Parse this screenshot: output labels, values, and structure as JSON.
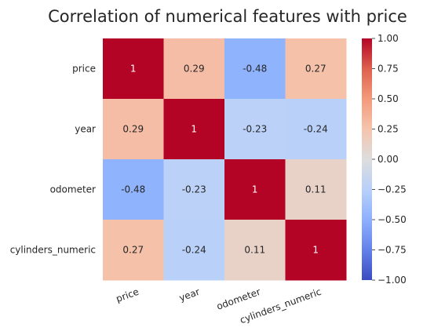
{
  "chart_data": {
    "type": "heatmap",
    "title": "Correlation of numerical features with price",
    "row_labels": [
      "price",
      "year",
      "odometer",
      "cylinders_numeric"
    ],
    "col_labels": [
      "price",
      "year",
      "odometer",
      "cylinders_numeric"
    ],
    "values": [
      [
        1,
        0.29,
        -0.48,
        0.27
      ],
      [
        0.29,
        1,
        -0.23,
        -0.24
      ],
      [
        -0.48,
        -0.23,
        1,
        0.11
      ],
      [
        0.27,
        -0.24,
        0.11,
        1
      ]
    ],
    "cell_text": [
      [
        "1",
        "0.29",
        "-0.48",
        "0.27"
      ],
      [
        "0.29",
        "1",
        "-0.23",
        "-0.24"
      ],
      [
        "-0.48",
        "-0.23",
        "1",
        "0.11"
      ],
      [
        "0.27",
        "-0.24",
        "0.11",
        "1"
      ]
    ],
    "colormap": "coolwarm",
    "vmin": -1,
    "vmax": 1,
    "colorbar_ticks": [
      1.0,
      0.75,
      0.5,
      0.25,
      0.0,
      -0.25,
      -0.5,
      -0.75,
      -1.0
    ],
    "colorbar_tick_labels": [
      "1.00",
      "0.75",
      "0.50",
      "0.25",
      "0.00",
      "−0.25",
      "−0.50",
      "−0.75",
      "−1.00"
    ],
    "x_tick_rotation_deg": 20,
    "colors": {
      "low": "#3b4cc0",
      "mid": "#dddddd",
      "high": "#b40426",
      "text_dark": "#262626",
      "text_light": "#ffffff"
    }
  }
}
